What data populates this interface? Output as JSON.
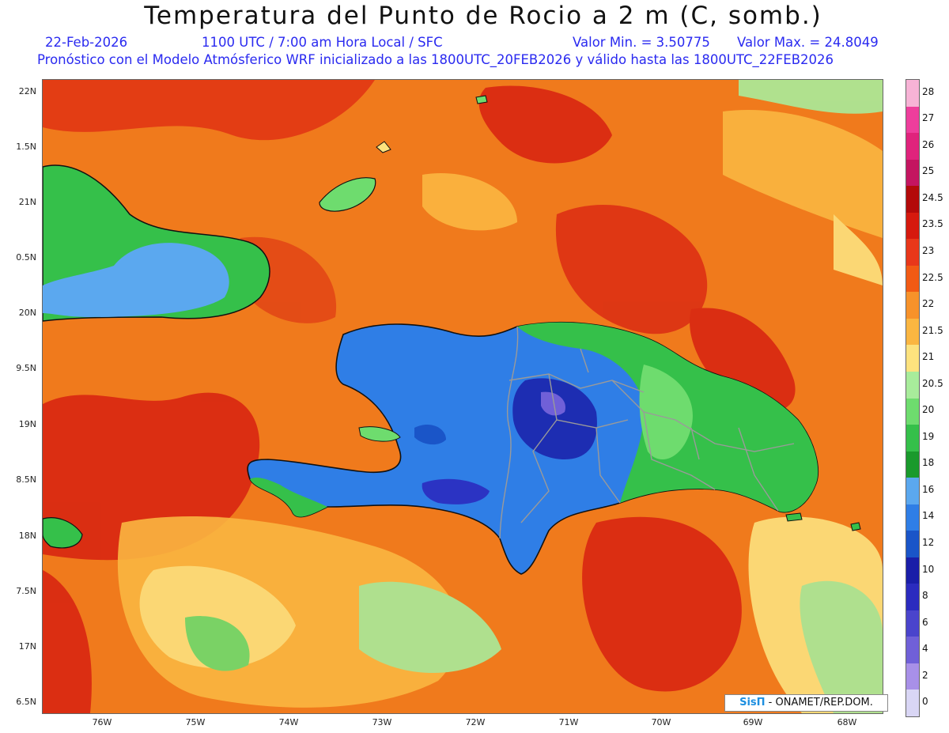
{
  "header": {
    "title": "Temperatura del Punto de Rocio a 2 m (C, somb.)",
    "date": "22-Feb-2026",
    "time": "1100 UTC / 7:00 am Hora Local / SFC",
    "valor_min": "Valor Min. = 3.50775",
    "valor_max": "Valor Max. = 24.8049",
    "description": "Pronóstico con el Modelo Atmósferico WRF inicializado a las 1800UTC_20FEB2026 y válido hasta las  1800UTC_22FEB2026"
  },
  "axes": {
    "lat_labels": [
      "22N",
      "1.5N",
      "21N",
      "0.5N",
      "20N",
      "9.5N",
      "19N",
      "8.5N",
      "18N",
      "7.5N",
      "17N",
      "6.5N"
    ],
    "lon_labels": [
      "76W",
      "75W",
      "74W",
      "73W",
      "72W",
      "71W",
      "70W",
      "69W",
      "68W"
    ]
  },
  "colorbar": {
    "labels": [
      "28",
      "27",
      "26",
      "25",
      "24.5",
      "23.5",
      "23",
      "22.5",
      "22",
      "21.5",
      "21",
      "20.5",
      "20",
      "19",
      "18",
      "16",
      "14",
      "12",
      "10",
      "8",
      "6",
      "4",
      "2",
      "0"
    ],
    "colors": [
      "#f7b3d6",
      "#ee3e9c",
      "#e0237c",
      "#c41560",
      "#b30a0a",
      "#d6190e",
      "#e8371a",
      "#f25a14",
      "#f7922a",
      "#fbb641",
      "#fde27e",
      "#a8ec9b",
      "#6edc6e",
      "#35c04a",
      "#1a9a2c",
      "#5ba8ef",
      "#2f7ee6",
      "#1a55c8",
      "#1a1ea8",
      "#2b2bbf",
      "#4a44cc",
      "#7060d8",
      "#a890e8",
      "#d9d6f5"
    ]
  },
  "palette": {
    "ocean_base": "#f07a1c",
    "coast": "#111111",
    "border": "#9a9a9a"
  },
  "credit": {
    "logo": "SisΠ",
    "text": "- ONAMET/REP.DOM."
  }
}
